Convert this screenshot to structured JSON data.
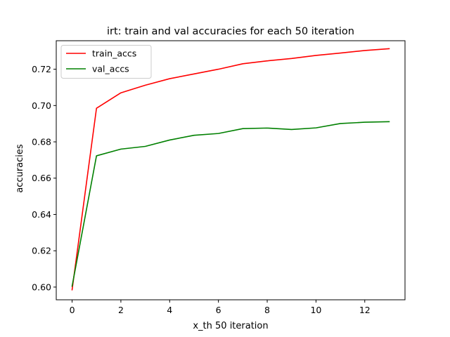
{
  "chart_data": {
    "type": "line",
    "title": "irt: train and val accuracies for each 50 iteration",
    "xlabel": "x_th 50 iteration",
    "ylabel": "accuracies",
    "xlim": [
      -0.65,
      13.65
    ],
    "ylim": [
      0.593,
      0.7357
    ],
    "xticks": [
      0,
      2,
      4,
      6,
      8,
      10,
      12
    ],
    "xtick_labels": [
      "0",
      "2",
      "4",
      "6",
      "8",
      "10",
      "12"
    ],
    "yticks": [
      0.6,
      0.62,
      0.64,
      0.66,
      0.68,
      0.7,
      0.72
    ],
    "ytick_labels": [
      "0.60",
      "0.62",
      "0.64",
      "0.66",
      "0.68",
      "0.70",
      "0.72"
    ],
    "grid": false,
    "legend_position": "top-left",
    "x": [
      0,
      1,
      2,
      3,
      4,
      5,
      6,
      7,
      8,
      9,
      10,
      11,
      12,
      13
    ],
    "series": [
      {
        "name": "train_accs",
        "color": "#ff0000",
        "values": [
          0.5985,
          0.6985,
          0.707,
          0.7112,
          0.7148,
          0.7174,
          0.72,
          0.723,
          0.7246,
          0.7259,
          0.7276,
          0.7289,
          0.7303,
          0.7313
        ]
      },
      {
        "name": "val_accs",
        "color": "#008000",
        "values": [
          0.6005,
          0.6723,
          0.676,
          0.6775,
          0.681,
          0.6836,
          0.6846,
          0.6873,
          0.6876,
          0.6868,
          0.6877,
          0.6901,
          0.6908,
          0.6911
        ]
      }
    ]
  }
}
